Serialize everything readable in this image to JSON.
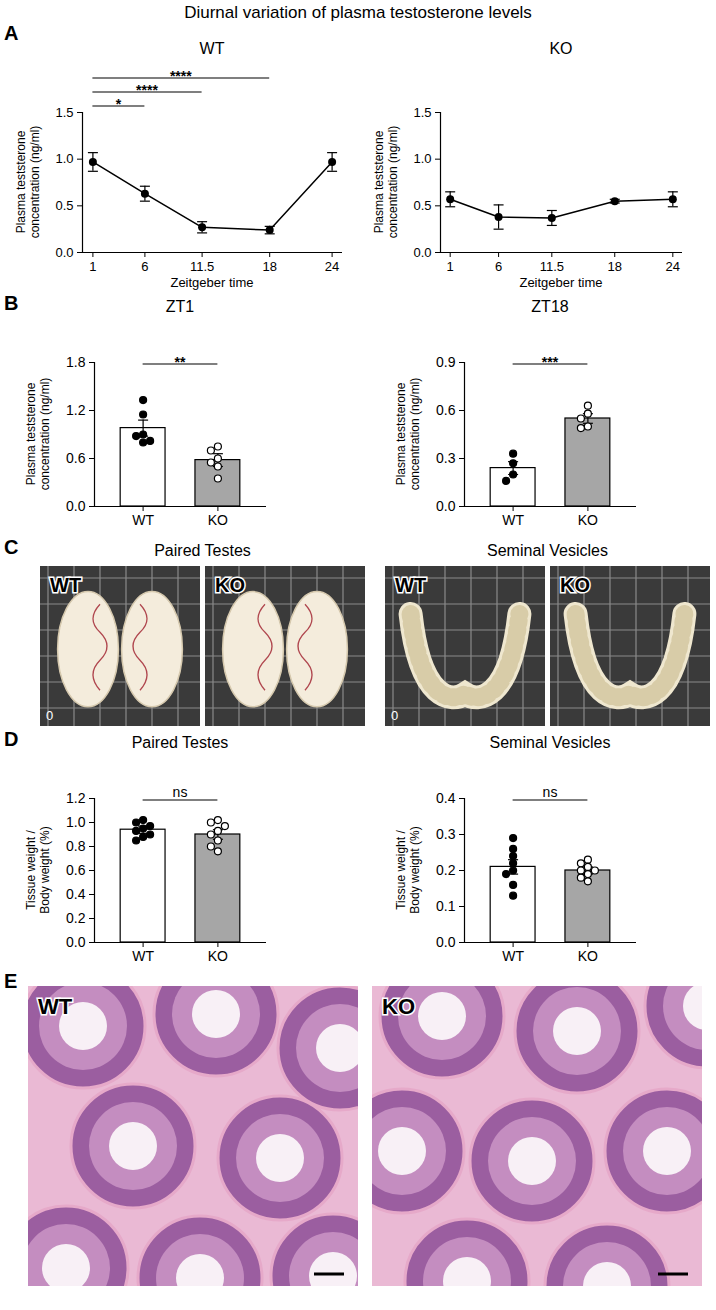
{
  "title": "Diurnal variation of plasma testosterone levels",
  "panel_labels": [
    "A",
    "B",
    "C",
    "D",
    "E"
  ],
  "chart_data": [
    {
      "type": "line",
      "title": "WT",
      "x": [
        1,
        6,
        11.5,
        18,
        24
      ],
      "values": [
        0.97,
        0.63,
        0.27,
        0.24,
        0.97
      ],
      "errors": [
        0.1,
        0.08,
        0.06,
        0.04,
        0.1
      ],
      "color": "#000000",
      "marker": "circle",
      "xlabel": "Zeitgeber time",
      "ylabel": "Plasma teststerone concentration (ng/ml)",
      "xlim": [
        0,
        25
      ],
      "xticks": [
        1,
        6,
        11.5,
        18,
        24
      ],
      "ylim": [
        0,
        1.5
      ],
      "yticks": [
        {
          "value": 0,
          "label": "0.0"
        },
        0.5,
        {
          "value": 1,
          "label": "1.0"
        },
        1.5
      ],
      "annotations": [
        {
          "x1": 1,
          "x2": 6,
          "text": "*"
        },
        {
          "x1": 1,
          "x2": 11.5,
          "text": "****"
        },
        {
          "x1": 1,
          "x2": 18,
          "text": "****"
        }
      ]
    },
    {
      "type": "line",
      "title": "KO",
      "x": [
        1,
        6,
        11.5,
        18,
        24
      ],
      "values": [
        0.57,
        0.38,
        0.37,
        0.55,
        0.57
      ],
      "errors": [
        0.08,
        0.13,
        0.08,
        0.02,
        0.08
      ],
      "color": "#000000",
      "marker": "circle",
      "xlabel": "Zeitgeber time",
      "ylabel": "Plasma teststerone concentration (ng/ml)",
      "xlim": [
        0,
        25
      ],
      "xticks": [
        1,
        6,
        11.5,
        18,
        24
      ],
      "ylim": [
        0,
        1.5
      ],
      "yticks": [
        {
          "value": 0,
          "label": "0.0"
        },
        0.5,
        {
          "value": 1,
          "label": "1.0"
        },
        1.5
      ]
    },
    {
      "type": "bar",
      "title": "ZT1",
      "categories": [
        "WT",
        "KO"
      ],
      "values": [
        0.98,
        0.58
      ],
      "errors": [
        0.1,
        0.08
      ],
      "colors": [
        "#ffffff",
        "#a6a6a6"
      ],
      "points": [
        {
          "values": [
            1.33,
            1.15,
            0.9,
            0.88,
            0.82,
            0.8
          ],
          "marker": "circle"
        },
        {
          "values": [
            0.75,
            0.7,
            0.6,
            0.55,
            0.5,
            0.35
          ],
          "marker": "circle-open"
        }
      ],
      "ylabel": "Plasma teststerone concentration (ng/ml)",
      "ylim": [
        0,
        1.8
      ],
      "yticks": [
        {
          "value": 0,
          "label": "0.0"
        },
        0.6,
        1.2,
        1.8
      ],
      "annotations": [
        {
          "x1": "WT",
          "x2": "KO",
          "text": "**"
        }
      ]
    },
    {
      "type": "bar",
      "title": "ZT18",
      "categories": [
        "WT",
        "KO"
      ],
      "values": [
        0.24,
        0.55
      ],
      "errors": [
        0.04,
        0.03
      ],
      "colors": [
        "#ffffff",
        "#a6a6a6"
      ],
      "points": [
        {
          "values": [
            0.33,
            0.27,
            0.2,
            0.16
          ],
          "marker": "circle"
        },
        {
          "values": [
            0.63,
            0.58,
            0.55,
            0.5,
            0.49
          ],
          "marker": "circle-open"
        }
      ],
      "ylabel": "Plasma teststerone concentration (ng/ml)",
      "ylim": [
        0,
        0.9
      ],
      "yticks": [
        {
          "value": 0,
          "label": "0.0"
        },
        0.3,
        0.6,
        0.9
      ],
      "annotations": [
        {
          "x1": "WT",
          "x2": "KO",
          "text": "***"
        }
      ]
    },
    {
      "type": "bar",
      "title": "Paired Testes",
      "categories": [
        "WT",
        "KO"
      ],
      "values": [
        0.94,
        0.9
      ],
      "errors": [
        0.03,
        0.04
      ],
      "colors": [
        "#ffffff",
        "#a6a6a6"
      ],
      "points": [
        {
          "values": [
            1.02,
            1.0,
            0.97,
            0.95,
            0.93,
            0.9,
            0.88,
            0.85
          ],
          "marker": "circle"
        },
        {
          "values": [
            1.02,
            1.0,
            0.97,
            0.93,
            0.9,
            0.85,
            0.8,
            0.76
          ],
          "marker": "circle-open"
        }
      ],
      "ylabel": "Tissue weight / Body weight (%)",
      "ylim": [
        0,
        1.2
      ],
      "yticks": [
        {
          "value": 0,
          "label": "0.0"
        },
        0.2,
        0.4,
        0.6,
        0.8,
        {
          "value": 1,
          "label": "1.0"
        },
        1.2
      ],
      "annotations": [
        {
          "x1": "WT",
          "x2": "KO",
          "text": "ns"
        }
      ]
    },
    {
      "type": "bar",
      "title": "Seminal Vesicles",
      "categories": [
        "WT",
        "KO"
      ],
      "values": [
        0.21,
        0.2
      ],
      "errors": [
        0.02,
        0.01
      ],
      "colors": [
        "#ffffff",
        "#a6a6a6"
      ],
      "points": [
        {
          "values": [
            0.29,
            0.26,
            0.24,
            0.22,
            0.2,
            0.19,
            0.16,
            0.13
          ],
          "marker": "circle"
        },
        {
          "values": [
            0.23,
            0.22,
            0.21,
            0.2,
            0.2,
            0.19,
            0.18,
            0.17
          ],
          "marker": "circle-open"
        }
      ],
      "ylabel": "Tissue weight / Body weight (%)",
      "ylim": [
        0,
        0.4
      ],
      "yticks": [
        {
          "value": 0,
          "label": "0.0"
        },
        0.1,
        0.2,
        0.3,
        0.4
      ],
      "annotations": [
        {
          "x1": "WT",
          "x2": "KO",
          "text": "ns"
        }
      ]
    }
  ],
  "photos": {
    "titles": [
      "Paired Testes",
      "Seminal Vesicles"
    ],
    "labels": [
      "WT",
      "KO"
    ],
    "scale_label": "0"
  },
  "histology": {
    "labels": [
      "WT",
      "KO"
    ]
  }
}
